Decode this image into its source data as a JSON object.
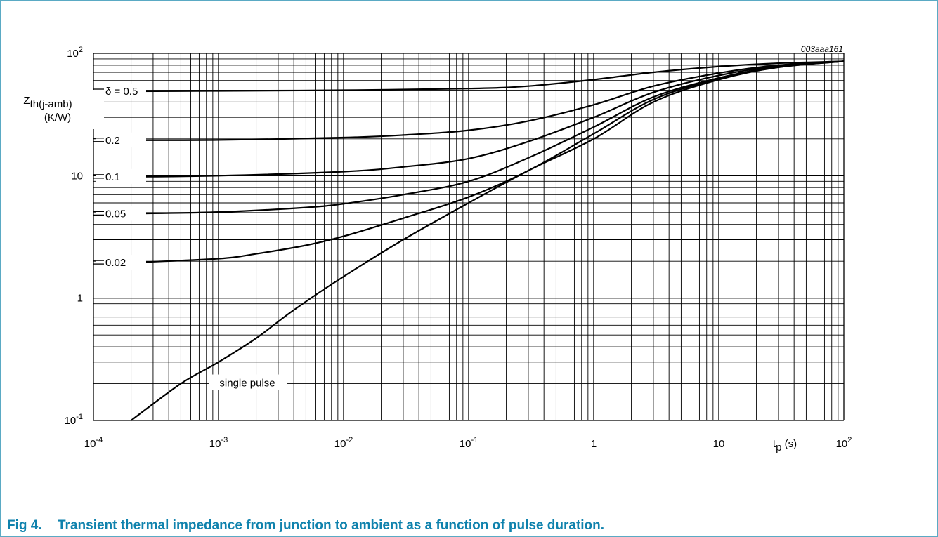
{
  "figure": {
    "number": "Fig 4.",
    "caption": "Transient thermal impedance from junction to ambient as a function of pulse duration.",
    "ref_code": "003aaa161"
  },
  "chart_data": {
    "type": "line",
    "x_scale": "log",
    "y_scale": "log",
    "xlim": [
      0.0001,
      100
    ],
    "ylim": [
      0.1,
      100
    ],
    "grid": true,
    "ylabel": "Zth(j-amb)",
    "ylabel_unit": "(K/W)",
    "xlabel": "tp (s)",
    "x_ticks": [
      {
        "base": "10",
        "exp": "-4"
      },
      {
        "base": "10",
        "exp": "-3"
      },
      {
        "base": "10",
        "exp": "-2"
      },
      {
        "base": "10",
        "exp": "-1"
      },
      {
        "base": "1",
        "exp": ""
      },
      {
        "base": "10",
        "exp": ""
      },
      {
        "base": "10",
        "exp": "2"
      }
    ],
    "y_ticks": [
      {
        "base": "10",
        "exp": "-1"
      },
      {
        "base": "1",
        "exp": ""
      },
      {
        "base": "10",
        "exp": ""
      },
      {
        "base": "10",
        "exp": "2"
      }
    ],
    "series": [
      {
        "name": "δ = 0.5",
        "x": [
          0.0002,
          0.001,
          0.01,
          0.1,
          0.3,
          1,
          3,
          10,
          30,
          100
        ],
        "y": [
          49,
          49.3,
          50,
          51.5,
          54,
          61,
          70,
          78,
          83,
          86
        ]
      },
      {
        "name": "0.2",
        "x": [
          0.0002,
          0.001,
          0.01,
          0.03,
          0.1,
          0.3,
          1,
          3,
          10,
          30,
          100
        ],
        "y": [
          19.5,
          19.6,
          20.5,
          21.5,
          23.5,
          28,
          38,
          54,
          69,
          80,
          86
        ]
      },
      {
        "name": "0.1",
        "x": [
          0.0002,
          0.001,
          0.01,
          0.03,
          0.1,
          0.3,
          1,
          3,
          10,
          30,
          100
        ],
        "y": [
          9.8,
          10,
          10.8,
          11.8,
          13.8,
          19,
          30,
          48,
          66,
          79,
          86
        ]
      },
      {
        "name": "0.05",
        "x": [
          0.0002,
          0.001,
          0.005,
          0.01,
          0.03,
          0.1,
          0.3,
          1,
          3,
          10,
          30,
          100
        ],
        "y": [
          4.9,
          5.05,
          5.5,
          5.9,
          7,
          9,
          14,
          25,
          44,
          63,
          78,
          86
        ]
      },
      {
        "name": "0.02",
        "x": [
          0.0002,
          0.001,
          0.002,
          0.005,
          0.01,
          0.03,
          0.1,
          0.3,
          1,
          3,
          10,
          30,
          100
        ],
        "y": [
          1.95,
          2.1,
          2.3,
          2.7,
          3.2,
          4.5,
          6.7,
          11,
          22,
          42,
          62,
          77,
          86
        ]
      },
      {
        "name": "single pulse",
        "x": [
          0.0002,
          0.0005,
          0.001,
          0.002,
          0.004,
          0.01,
          0.03,
          0.1,
          0.3,
          1,
          3,
          10,
          30,
          100
        ],
        "y": [
          0.1,
          0.2,
          0.3,
          0.47,
          0.8,
          1.5,
          3,
          6,
          11,
          20,
          40,
          61,
          77,
          86
        ]
      }
    ],
    "series_label_positions": {
      "single pulse": "below curve near 10^-3"
    }
  },
  "colors": {
    "caption": "#0f82ad",
    "frame": "#5aaac4",
    "lines": "#000000"
  }
}
